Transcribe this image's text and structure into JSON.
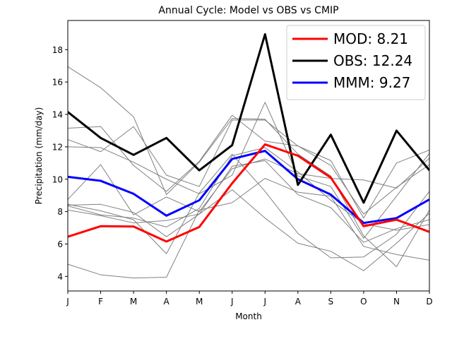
{
  "chart_data": {
    "type": "line",
    "title": "Annual Cycle: Model vs OBS vs CMIP",
    "xlabel": "Month",
    "ylabel": "Precipitation (mm/day)",
    "categories": [
      "J",
      "F",
      "M",
      "A",
      "M",
      "J",
      "J",
      "A",
      "S",
      "O",
      "N",
      "D"
    ],
    "ylim": [
      3.1,
      19.8
    ],
    "yticks": [
      4,
      6,
      8,
      10,
      12,
      14,
      16,
      18
    ],
    "grid": false,
    "legend_position": "top-right",
    "series": [
      {
        "name": "MOD: 8.21",
        "color": "#ff0000",
        "emphasis": true,
        "values": [
          6.45,
          7.1,
          7.08,
          6.15,
          7.05,
          9.75,
          12.15,
          11.45,
          10.1,
          7.1,
          7.5,
          6.75
        ]
      },
      {
        "name": "OBS: 12.24",
        "color": "#000000",
        "emphasis": true,
        "values": [
          14.15,
          12.55,
          11.5,
          12.55,
          10.55,
          12.1,
          18.95,
          9.65,
          12.75,
          8.55,
          13.0,
          10.55
        ]
      },
      {
        "name": "MMM: 9.27",
        "color": "#0000ff",
        "emphasis": true,
        "values": [
          10.15,
          9.9,
          9.1,
          7.75,
          8.7,
          11.25,
          11.75,
          10.0,
          9.05,
          7.3,
          7.6,
          8.75
        ]
      },
      {
        "color": "#808080",
        "values": [
          16.95,
          15.65,
          13.85,
          9.05,
          11.05,
          13.75,
          13.7,
          11.55,
          10.2,
          6.5,
          4.6,
          8.1
        ]
      },
      {
        "color": "#808080",
        "values": [
          13.15,
          13.25,
          10.85,
          9.25,
          11.1,
          13.95,
          12.35,
          12.05,
          10.85,
          7.85,
          9.5,
          10.9
        ]
      },
      {
        "color": "#808080",
        "values": [
          12.45,
          11.7,
          13.25,
          10.25,
          9.55,
          13.65,
          13.65,
          12.05,
          11.15,
          7.6,
          11.0,
          11.8
        ]
      },
      {
        "color": "#808080",
        "values": [
          12.0,
          11.95,
          11.05,
          10.0,
          9.1,
          10.25,
          14.75,
          10.2,
          9.55,
          6.35,
          8.95,
          11.6
        ]
      },
      {
        "color": "#808080",
        "values": [
          8.75,
          10.9,
          7.8,
          8.9,
          8.0,
          10.65,
          11.25,
          10.35,
          10.05,
          9.95,
          9.45,
          11.3
        ]
      },
      {
        "color": "#808080",
        "values": [
          8.4,
          8.45,
          7.95,
          6.45,
          7.85,
          10.8,
          11.15,
          9.05,
          8.25,
          6.1,
          6.95,
          7.5
        ]
      },
      {
        "color": "#808080",
        "values": [
          8.1,
          7.75,
          7.3,
          7.45,
          7.85,
          9.35,
          7.6,
          6.05,
          5.55,
          4.35,
          6.05,
          7.9
        ]
      },
      {
        "color": "#808080",
        "values": [
          8.45,
          8.05,
          7.5,
          5.4,
          9.15,
          11.55,
          9.25,
          6.65,
          5.15,
          5.2,
          6.6,
          9.25
        ]
      },
      {
        "color": "#808080",
        "values": [
          4.75,
          4.1,
          3.9,
          3.95,
          8.1,
          8.55,
          10.05,
          9.2,
          8.95,
          5.85,
          5.35,
          5.0
        ]
      },
      {
        "color": "#808080",
        "values": [
          8.35,
          7.8,
          7.6,
          7.05,
          8.2,
          11.45,
          11.95,
          10.45,
          8.7,
          7.25,
          6.85,
          7.2
        ]
      }
    ]
  }
}
